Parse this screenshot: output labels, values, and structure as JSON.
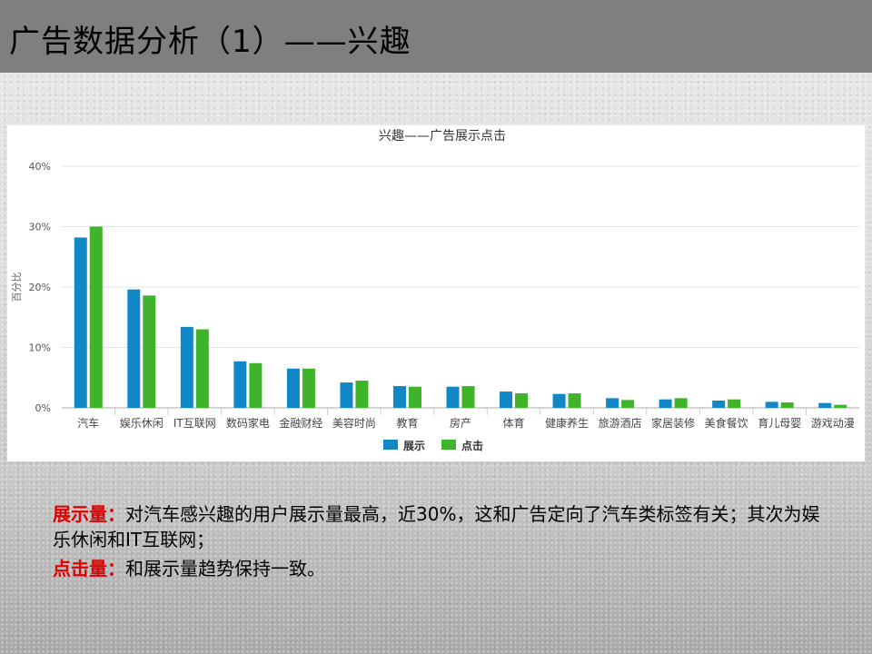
{
  "slide": {
    "title": "广告数据分析（1）——兴趣"
  },
  "notes": [
    {
      "keyword": "展示量：",
      "text": "对汽车感兴趣的用户展示量最高，近30%，这和广告定向了汽车类标签有关；其次为娱乐休闲和IT互联网；"
    },
    {
      "keyword": "点击量：",
      "text": "和展示量趋势保持一致。"
    }
  ],
  "colors": {
    "series_show": "#1187c6",
    "series_click": "#3fb32a",
    "keyword_red": "#e00000",
    "title_bar": "#7f7f7f"
  },
  "chart_data": {
    "type": "bar",
    "title": "兴趣——广告展示点击",
    "xlabel": "",
    "ylabel": "百分比",
    "ylim": [
      0,
      40
    ],
    "yticks": [
      "0%",
      "10%",
      "20%",
      "30%",
      "40%"
    ],
    "grid": true,
    "legend_position": "bottom",
    "categories": [
      "汽车",
      "娱乐休闲",
      "IT互联网",
      "数码家电",
      "金融财经",
      "美容时尚",
      "教育",
      "房产",
      "体育",
      "健康养生",
      "旅游酒店",
      "家居装修",
      "美食餐饮",
      "育儿母婴",
      "游戏动漫"
    ],
    "series": [
      {
        "name": "展示",
        "values": [
          28.2,
          19.6,
          13.4,
          7.7,
          6.5,
          4.2,
          3.6,
          3.5,
          2.7,
          2.3,
          1.6,
          1.4,
          1.2,
          1.0,
          0.8
        ]
      },
      {
        "name": "点击",
        "values": [
          30.0,
          18.6,
          13.0,
          7.4,
          6.5,
          4.5,
          3.5,
          3.6,
          2.4,
          2.4,
          1.3,
          1.6,
          1.4,
          0.9,
          0.5
        ]
      }
    ]
  }
}
